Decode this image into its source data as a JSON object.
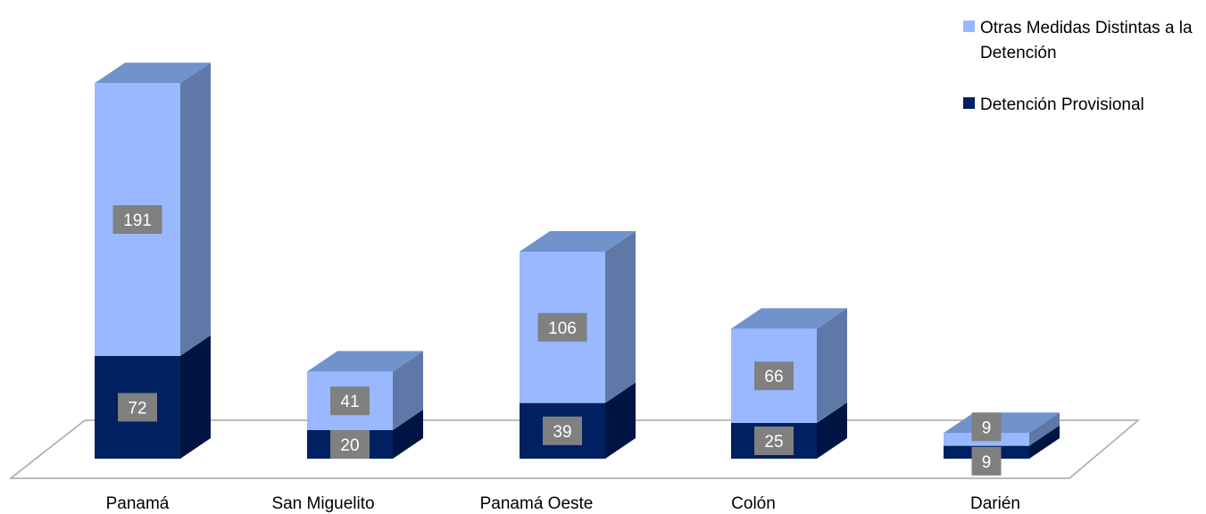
{
  "chart_data": {
    "type": "bar",
    "stacked": true,
    "style": "3d",
    "categories": [
      "Panamá",
      "San Miguelito",
      "Panamá Oeste",
      "Colón",
      "Darién"
    ],
    "series": [
      {
        "name": "Detención Provisional",
        "values": [
          72,
          20,
          39,
          25,
          9
        ]
      },
      {
        "name": "Otras Medidas Distintas a la Detención",
        "values": [
          191,
          41,
          106,
          66,
          9
        ]
      }
    ],
    "legend_position": "top-right",
    "grid": false,
    "colors": {
      "detencion_front": "#002060",
      "detencion_side": "#001443",
      "detencion_top": "#0a2a6e",
      "otras_front": "#99B8FF",
      "otras_side": "#5E78A8",
      "otras_top": "#7093CC",
      "label_bg": "#808080",
      "label_text": "#ffffff",
      "floor_stroke": "#a6a6a6"
    }
  }
}
